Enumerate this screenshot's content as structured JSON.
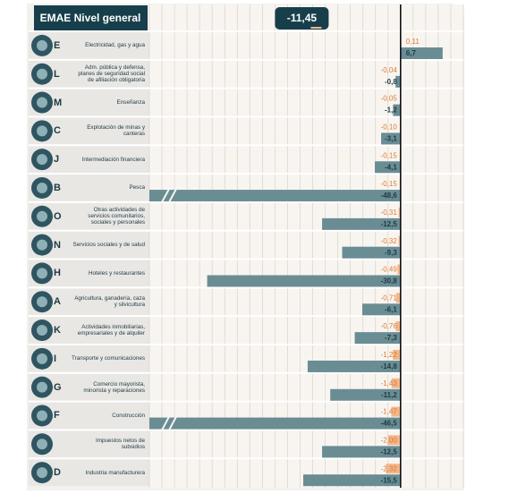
{
  "chart_data": {
    "type": "bar",
    "title": "EMAE Nivel general",
    "total": -11.45,
    "total_label": "-11,45",
    "categories": [
      "Electricidad, gas y agua",
      "Adm. pública y defensa, planes de seguridad social de afiliación obligatoria",
      "Enseñanza",
      "Explotación de minas y canteras",
      "Intermediación financiera",
      "Pesca",
      "Otras actividades de servicios comunitarios, sociales y personales",
      "Servicios sociales y de salud",
      "Hoteles y restaurantes",
      "Agricultura, ganadería, caza y silvicultura",
      "Actividades inmobiliarias, empresariales y de alquiler",
      "Transporte y comunicaciones",
      "Comercio mayorista, minorista y reparaciones",
      "Construcción",
      "Impuestos netos de subsidios",
      "Industria manufacturera"
    ],
    "codes": [
      "E",
      "L",
      "M",
      "C",
      "J",
      "B",
      "O",
      "N",
      "H",
      "A",
      "K",
      "I",
      "G",
      "F",
      null,
      "D"
    ],
    "series": [
      {
        "color": "#f2b68b",
        "label_color": "#e07a2e",
        "values": [
          0.11,
          -0.04,
          -0.05,
          -0.1,
          -0.15,
          -0.15,
          -0.31,
          -0.32,
          -0.49,
          -0.71,
          -0.76,
          -1.22,
          -1.43,
          -1.47,
          -2.0,
          -2.32
        ],
        "value_labels": [
          "0,11",
          "-0,04",
          "-0,05",
          "-0,10",
          "-0,15",
          "-0,15",
          "-0,31",
          "-0,32",
          "-0,49",
          "-0,71",
          "-0,76",
          "-1,22",
          "-1,43",
          "-1,47",
          "-2,00",
          "-2,32"
        ]
      },
      {
        "color": "#6a8d94",
        "label_color": "#1d3a44",
        "values": [
          6.7,
          -0.8,
          -1.2,
          -3.1,
          -4.1,
          -48.6,
          -12.5,
          -9.3,
          -30.8,
          -6.1,
          -7.3,
          -14.8,
          -11.2,
          -46.5,
          -12.5,
          -15.5
        ],
        "value_labels": [
          "6,7",
          "-0,8",
          "-1,2",
          "-3,1",
          "-4,1",
          "-48,6",
          "-12,5",
          "-9,3",
          "-30,8",
          "-6,1",
          "-7,3",
          "-14,8",
          "-11,2",
          "-46,5",
          "-12,5",
          "-15,5"
        ]
      }
    ],
    "xlim": [
      -40,
      10
    ],
    "xticks": [
      -40,
      -38,
      -36,
      -34,
      -32,
      -30,
      -28,
      -26,
      -24,
      -22,
      -20,
      -18,
      -16,
      -14,
      -12,
      -10,
      -8,
      -6,
      -4,
      -2,
      0,
      2,
      4,
      6,
      8,
      10
    ],
    "grid": true
  }
}
